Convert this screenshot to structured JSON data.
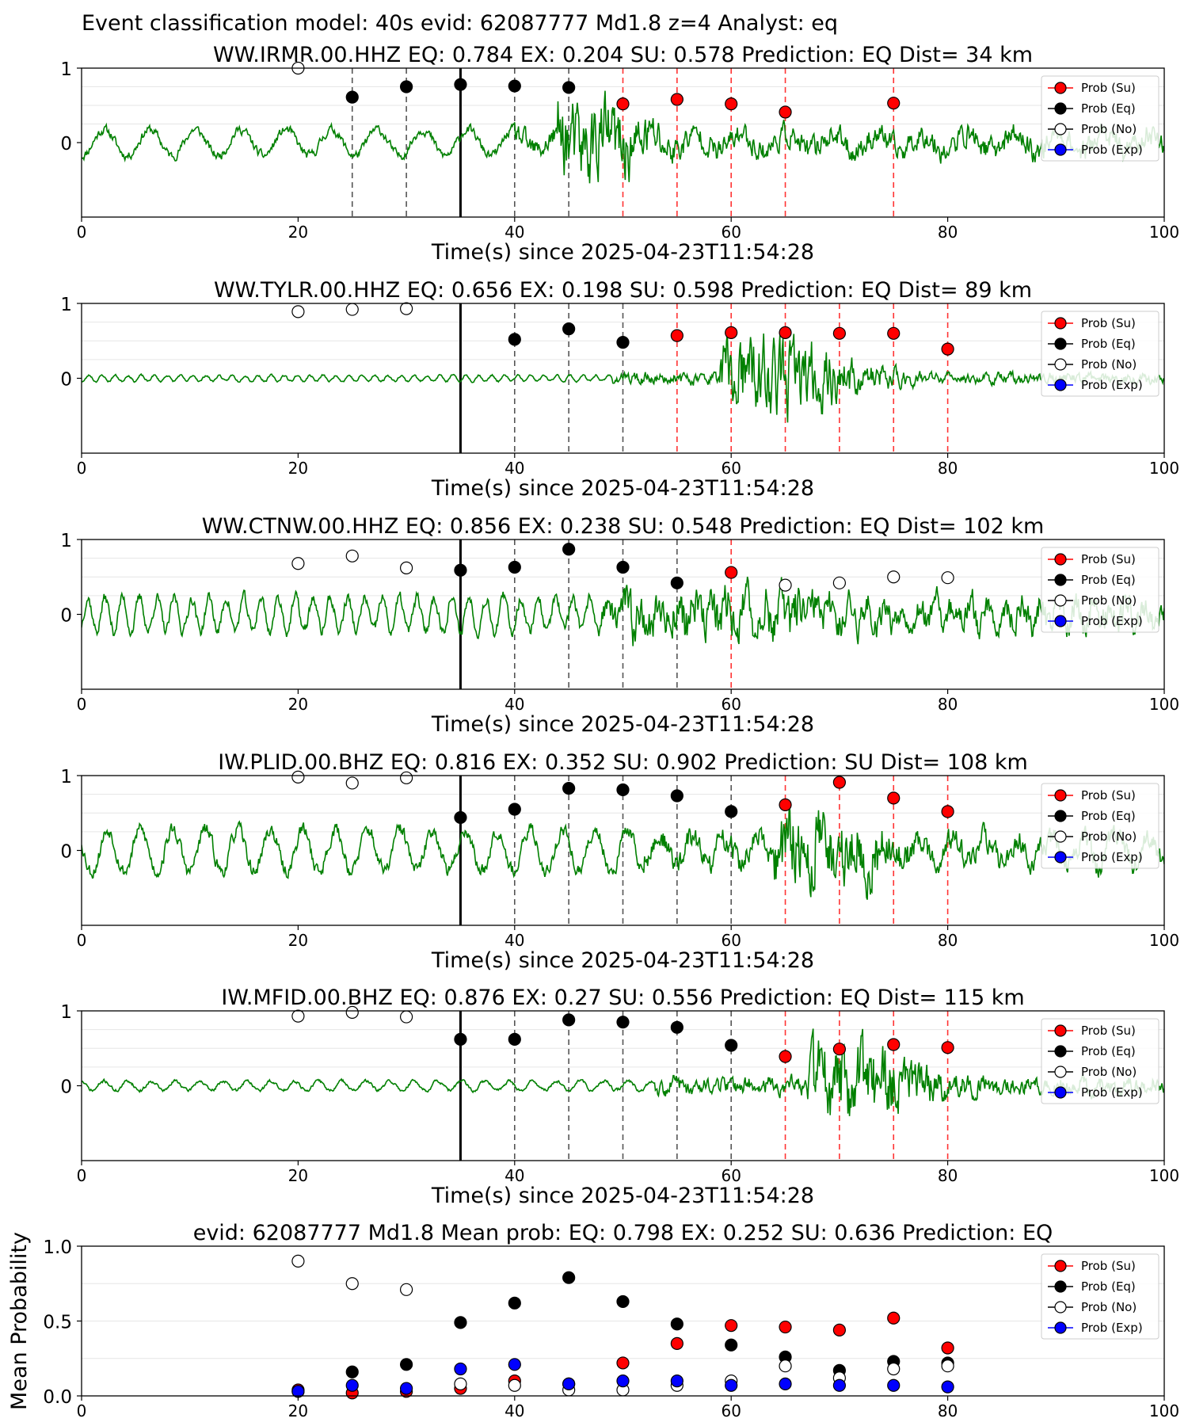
{
  "figure": {
    "title": "Event classification model: 40s evid: 62087777 Md1.8 z=4 Analyst: eq"
  },
  "colors": {
    "waveform": "#008000",
    "su": "#ff0000",
    "eq": "#000000",
    "no": "#ffffff",
    "exp": "#0000ff",
    "eq_line": "#555555",
    "su_line": "#ff3333",
    "origin_line": "#000000"
  },
  "legend": {
    "placement": "top-right",
    "entries": [
      {
        "key": "su",
        "label": "Prob (Su)"
      },
      {
        "key": "eq",
        "label": "Prob (Eq)"
      },
      {
        "key": "no",
        "label": "Prob (No)"
      },
      {
        "key": "exp",
        "label": "Prob (Exp)"
      }
    ]
  },
  "chart_data": [
    {
      "type": "scatter",
      "title": "WW.IRMR.00.HHZ   EQ: 0.784  EX: 0.204  SU: 0.578   Prediction: EQ    Dist= 34 km",
      "xlabel": "Time(s) since 2025-04-23T11:54:28",
      "ylabel": "",
      "xlim": [
        0,
        100
      ],
      "ylim": [
        -1,
        1
      ],
      "xticks": [
        0,
        20,
        40,
        60,
        80,
        100
      ],
      "yticks": [
        0,
        1
      ],
      "origin_time": 35,
      "waveform": {
        "amp": 0.22,
        "onset": 40,
        "burst_start": 44,
        "burst_end": 49,
        "burst_amp": 0.95,
        "coda_amp": 0.28,
        "seed": 11,
        "period": 4.2
      },
      "points": [
        {
          "x": 20,
          "class": "no",
          "p": 1.0
        },
        {
          "x": 25,
          "class": "eq",
          "p": 0.61
        },
        {
          "x": 30,
          "class": "eq",
          "p": 0.75
        },
        {
          "x": 35,
          "class": "eq",
          "p": 0.78
        },
        {
          "x": 40,
          "class": "eq",
          "p": 0.76
        },
        {
          "x": 45,
          "class": "eq",
          "p": 0.74
        },
        {
          "x": 50,
          "class": "su",
          "p": 0.52
        },
        {
          "x": 55,
          "class": "su",
          "p": 0.58
        },
        {
          "x": 60,
          "class": "su",
          "p": 0.52
        },
        {
          "x": 65,
          "class": "su",
          "p": 0.41
        },
        {
          "x": 75,
          "class": "su",
          "p": 0.53
        }
      ]
    },
    {
      "type": "scatter",
      "title": "WW.TYLR.00.HHZ   EQ: 0.656  EX: 0.198  SU: 0.598   Prediction: EQ    Dist= 89 km",
      "xlabel": "Time(s) since 2025-04-23T11:54:28",
      "ylabel": "",
      "xlim": [
        0,
        100
      ],
      "ylim": [
        -1,
        1
      ],
      "xticks": [
        0,
        20,
        40,
        60,
        80,
        100
      ],
      "yticks": [
        0,
        1
      ],
      "origin_time": 35,
      "waveform": {
        "amp": 0.05,
        "onset": 49,
        "burst_start": 59,
        "burst_end": 67,
        "burst_amp": 0.9,
        "coda_amp": 0.12,
        "seed": 23,
        "period": 1.2
      },
      "points": [
        {
          "x": 20,
          "class": "no",
          "p": 0.89
        },
        {
          "x": 25,
          "class": "no",
          "p": 0.92
        },
        {
          "x": 30,
          "class": "no",
          "p": 0.93
        },
        {
          "x": 40,
          "class": "eq",
          "p": 0.52
        },
        {
          "x": 45,
          "class": "eq",
          "p": 0.66
        },
        {
          "x": 50,
          "class": "eq",
          "p": 0.48
        },
        {
          "x": 55,
          "class": "su",
          "p": 0.57
        },
        {
          "x": 60,
          "class": "su",
          "p": 0.61
        },
        {
          "x": 65,
          "class": "su",
          "p": 0.61
        },
        {
          "x": 70,
          "class": "su",
          "p": 0.6
        },
        {
          "x": 75,
          "class": "su",
          "p": 0.6
        },
        {
          "x": 80,
          "class": "su",
          "p": 0.39
        }
      ]
    },
    {
      "type": "scatter",
      "title": "WW.CTNW.00.HHZ   EQ: 0.856  EX: 0.238  SU: 0.548   Prediction: EQ    Dist= 102 km",
      "xlabel": "Time(s) since 2025-04-23T11:54:28",
      "ylabel": "",
      "xlim": [
        0,
        100
      ],
      "ylim": [
        -1,
        1
      ],
      "xticks": [
        0,
        20,
        40,
        60,
        80,
        100
      ],
      "yticks": [
        0,
        1
      ],
      "origin_time": 35,
      "waveform": {
        "amp": 0.28,
        "onset": 48,
        "burst_start": 50,
        "burst_end": 68,
        "burst_amp": 0.55,
        "coda_amp": 0.35,
        "seed": 37,
        "period": 1.6
      },
      "points": [
        {
          "x": 20,
          "class": "no",
          "p": 0.68
        },
        {
          "x": 25,
          "class": "no",
          "p": 0.78
        },
        {
          "x": 30,
          "class": "no",
          "p": 0.62
        },
        {
          "x": 35,
          "class": "eq",
          "p": 0.59
        },
        {
          "x": 40,
          "class": "eq",
          "p": 0.63
        },
        {
          "x": 45,
          "class": "eq",
          "p": 0.87
        },
        {
          "x": 50,
          "class": "eq",
          "p": 0.63
        },
        {
          "x": 55,
          "class": "eq",
          "p": 0.42
        },
        {
          "x": 60,
          "class": "su",
          "p": 0.56
        },
        {
          "x": 65,
          "class": "no",
          "p": 0.39
        },
        {
          "x": 70,
          "class": "no",
          "p": 0.42
        },
        {
          "x": 75,
          "class": "no",
          "p": 0.5
        },
        {
          "x": 80,
          "class": "no",
          "p": 0.49
        }
      ]
    },
    {
      "type": "scatter",
      "title": "IW.PLID.00.BHZ   EQ: 0.816  EX: 0.352  SU: 0.902   Prediction: SU    Dist= 108 km",
      "xlabel": "Time(s) since 2025-04-23T11:54:28",
      "ylabel": "",
      "xlim": [
        0,
        100
      ],
      "ylim": [
        -1,
        1
      ],
      "xticks": [
        0,
        20,
        40,
        60,
        80,
        100
      ],
      "yticks": [
        0,
        1
      ],
      "origin_time": 35,
      "waveform": {
        "amp": 0.35,
        "onset": 52,
        "burst_start": 64,
        "burst_end": 72,
        "burst_amp": 0.9,
        "coda_amp": 0.3,
        "seed": 53,
        "period": 3.0
      },
      "points": [
        {
          "x": 20,
          "class": "no",
          "p": 0.98
        },
        {
          "x": 25,
          "class": "no",
          "p": 0.9
        },
        {
          "x": 30,
          "class": "no",
          "p": 0.97
        },
        {
          "x": 35,
          "class": "eq",
          "p": 0.44
        },
        {
          "x": 40,
          "class": "eq",
          "p": 0.55
        },
        {
          "x": 45,
          "class": "eq",
          "p": 0.83
        },
        {
          "x": 50,
          "class": "eq",
          "p": 0.81
        },
        {
          "x": 55,
          "class": "eq",
          "p": 0.73
        },
        {
          "x": 60,
          "class": "eq",
          "p": 0.52
        },
        {
          "x": 65,
          "class": "su",
          "p": 0.61
        },
        {
          "x": 70,
          "class": "su",
          "p": 0.91
        },
        {
          "x": 75,
          "class": "su",
          "p": 0.7
        },
        {
          "x": 80,
          "class": "su",
          "p": 0.52
        }
      ]
    },
    {
      "type": "scatter",
      "title": "IW.MFID.00.BHZ   EQ: 0.876  EX: 0.27  SU: 0.556   Prediction: EQ    Dist= 115 km",
      "xlabel": "Time(s) since 2025-04-23T11:54:28",
      "ylabel": "",
      "xlim": [
        0,
        100
      ],
      "ylim": [
        -1,
        1
      ],
      "xticks": [
        0,
        20,
        40,
        60,
        80,
        100
      ],
      "yticks": [
        0,
        1
      ],
      "origin_time": 35,
      "waveform": {
        "amp": 0.08,
        "onset": 53,
        "burst_start": 67,
        "burst_end": 74,
        "burst_amp": 0.95,
        "coda_amp": 0.2,
        "seed": 71,
        "period": 2.2
      },
      "points": [
        {
          "x": 20,
          "class": "no",
          "p": 0.93
        },
        {
          "x": 25,
          "class": "no",
          "p": 0.98
        },
        {
          "x": 30,
          "class": "no",
          "p": 0.92
        },
        {
          "x": 35,
          "class": "eq",
          "p": 0.62
        },
        {
          "x": 40,
          "class": "eq",
          "p": 0.62
        },
        {
          "x": 45,
          "class": "eq",
          "p": 0.88
        },
        {
          "x": 50,
          "class": "eq",
          "p": 0.85
        },
        {
          "x": 55,
          "class": "eq",
          "p": 0.78
        },
        {
          "x": 60,
          "class": "eq",
          "p": 0.54
        },
        {
          "x": 65,
          "class": "su",
          "p": 0.39
        },
        {
          "x": 70,
          "class": "su",
          "p": 0.49
        },
        {
          "x": 75,
          "class": "su",
          "p": 0.55
        },
        {
          "x": 80,
          "class": "su",
          "p": 0.51
        }
      ]
    },
    {
      "type": "scatter",
      "title": "evid: 62087777  Md1.8   Mean prob:   EQ: 0.798  EX: 0.252  SU: 0.636   Prediction: EQ",
      "xlabel": "",
      "ylabel": "Mean Probability",
      "xlim": [
        0,
        100
      ],
      "ylim": [
        0,
        1
      ],
      "xticks": [
        0,
        20,
        40,
        60,
        80,
        100
      ],
      "yticks": [
        0.0,
        0.5,
        1.0
      ],
      "ytick_labels": [
        "0.0",
        "0.5",
        "1.0"
      ],
      "series": [
        {
          "key": "su",
          "x": [
            20,
            25,
            30,
            35,
            40,
            45,
            50,
            55,
            60,
            65,
            70,
            75,
            80
          ],
          "y": [
            0.04,
            0.02,
            0.03,
            0.05,
            0.1,
            0.08,
            0.22,
            0.35,
            0.47,
            0.46,
            0.44,
            0.52,
            0.32
          ]
        },
        {
          "key": "eq",
          "x": [
            20,
            25,
            30,
            35,
            40,
            45,
            50,
            55,
            60,
            65,
            70,
            75,
            80
          ],
          "y": [
            0.03,
            0.16,
            0.21,
            0.49,
            0.62,
            0.79,
            0.63,
            0.48,
            0.34,
            0.26,
            0.17,
            0.23,
            0.22
          ]
        },
        {
          "key": "no",
          "x": [
            20,
            25,
            30,
            35,
            40,
            45,
            50,
            55,
            60,
            65,
            70,
            75,
            80
          ],
          "y": [
            0.9,
            0.75,
            0.71,
            0.08,
            0.07,
            0.04,
            0.04,
            0.07,
            0.1,
            0.2,
            0.12,
            0.18,
            0.2
          ]
        },
        {
          "key": "exp",
          "x": [
            20,
            25,
            30,
            35,
            40,
            45,
            50,
            55,
            60,
            65,
            70,
            75,
            80
          ],
          "y": [
            0.03,
            0.07,
            0.05,
            0.18,
            0.21,
            0.08,
            0.1,
            0.1,
            0.07,
            0.08,
            0.07,
            0.07,
            0.06
          ]
        }
      ]
    }
  ]
}
